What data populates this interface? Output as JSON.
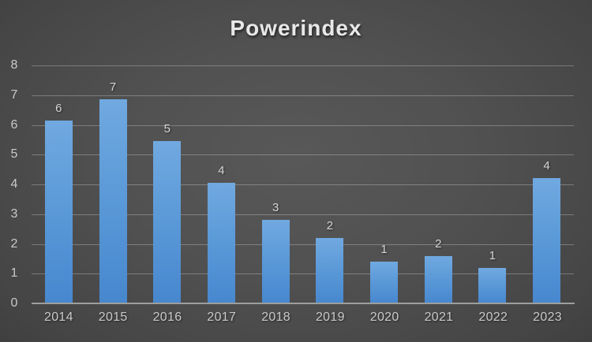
{
  "chart_data": {
    "type": "bar",
    "title": "Powerindex",
    "categories": [
      "2014",
      "2015",
      "2016",
      "2017",
      "2018",
      "2019",
      "2020",
      "2021",
      "2022",
      "2023"
    ],
    "values": [
      6.15,
      6.85,
      5.45,
      4.05,
      2.8,
      2.2,
      1.4,
      1.6,
      1.2,
      4.2
    ],
    "data_labels": [
      "6",
      "7",
      "5",
      "4",
      "3",
      "2",
      "1",
      "2",
      "1",
      "4"
    ],
    "xlabel": "",
    "ylabel": "",
    "ylim": [
      0,
      8
    ],
    "yticks": [
      0,
      1,
      2,
      3,
      4,
      5,
      6,
      7,
      8
    ],
    "grid": true,
    "legend": false,
    "colors": {
      "bar_top": "#71a9e0",
      "bar_bottom": "#4787ce",
      "background_center": "#585858",
      "background_edge": "#242424",
      "gridline": "rgba(255,255,255,0.27)",
      "axis_line": "#9e9e9e",
      "tick_text": "#c9c9c9",
      "data_label_text": "#d6d6d6",
      "title_text": "#e8e8e8"
    }
  }
}
